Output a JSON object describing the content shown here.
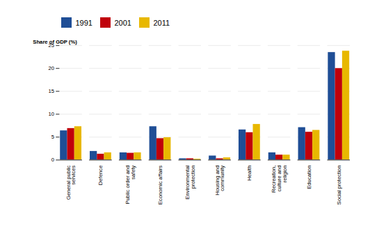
{
  "chart_data": {
    "type": "bar",
    "categories": [
      "General public\nservices",
      "Defence",
      "Public order and\nsafety",
      "Economic affairs",
      "Environmental\nprotection",
      "Housing and\ncommunity",
      "Health",
      "Recreation,\nculture and\nreligion",
      "Education",
      "Social protection"
    ],
    "series": [
      {
        "name": "1991",
        "color": "#1F4E96",
        "values": [
          6.4,
          1.9,
          1.6,
          7.3,
          0.3,
          0.9,
          6.6,
          1.6,
          7.1,
          23.5
        ]
      },
      {
        "name": "2001",
        "color": "#C0000A",
        "values": [
          6.9,
          1.3,
          1.5,
          4.7,
          0.3,
          0.3,
          6.0,
          1.1,
          6.1,
          20.0
        ]
      },
      {
        "name": "2011",
        "color": "#E8B800",
        "values": [
          7.3,
          1.6,
          1.6,
          4.9,
          0.2,
          0.5,
          7.8,
          1.1,
          6.5,
          23.8
        ]
      }
    ],
    "ylabel": "Share of GDP (%)",
    "ylim": [
      0,
      25
    ],
    "yticks": [
      0,
      5,
      10,
      15,
      20,
      25
    ],
    "grid": true,
    "legend": "upper left"
  }
}
